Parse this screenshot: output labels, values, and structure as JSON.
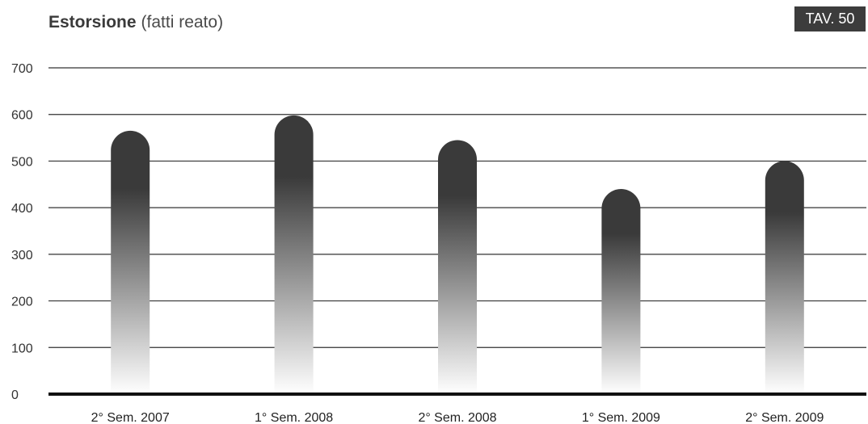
{
  "header": {
    "title": "Estorsione",
    "subtitle": "(fatti reato)",
    "badge": "TAV. 50"
  },
  "colors": {
    "bar_top": "#3a3a3a",
    "bar_bottom": "#ffffff",
    "grid": "#333333",
    "axis": "#111111",
    "badge_bg": "#3c3c3c"
  },
  "chart_data": {
    "type": "bar",
    "title": "Estorsione",
    "subtitle": "(fatti reato)",
    "categories": [
      "2° Sem. 2007",
      "1° Sem. 2008",
      "2° Sem. 2008",
      "1° Sem. 2009",
      "2° Sem. 2009"
    ],
    "values": [
      565,
      598,
      545,
      440,
      500
    ],
    "yticks": [
      0,
      100,
      200,
      300,
      400,
      500,
      600,
      700
    ],
    "ylim": [
      0,
      700
    ],
    "xlabel": "",
    "ylabel": "",
    "grid": true,
    "legend": "none"
  }
}
